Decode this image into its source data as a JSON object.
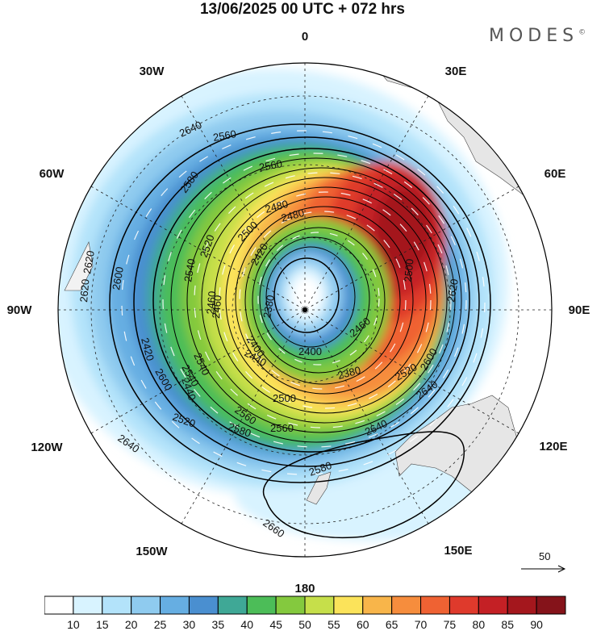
{
  "header": {
    "title": "13/06/2025  00 UTC  + 072 hrs",
    "brand": "MODES",
    "brand_mark": "©"
  },
  "map": {
    "projection": "south-polar-stereographic",
    "longitude_labels": [
      {
        "text": "0",
        "lon": 0
      },
      {
        "text": "30E",
        "lon": 30
      },
      {
        "text": "60E",
        "lon": 60
      },
      {
        "text": "90E",
        "lon": 90
      },
      {
        "text": "120E",
        "lon": 120
      },
      {
        "text": "150E",
        "lon": 150
      },
      {
        "text": "180",
        "lon": 180
      },
      {
        "text": "150W",
        "lon": -150
      },
      {
        "text": "120W",
        "lon": -120
      },
      {
        "text": "90W",
        "lon": -90
      },
      {
        "text": "60W",
        "lon": -60
      },
      {
        "text": "30W",
        "lon": -30
      }
    ],
    "contour_labels": [
      "2640",
      "2620",
      "2600",
      "2580",
      "2560",
      "2540",
      "2520",
      "2500",
      "2480",
      "2460",
      "2440",
      "2420",
      "2400",
      "2380",
      "2660",
      "2580",
      "2560",
      "2540",
      "2520",
      "2500",
      "2460",
      "2440",
      "2420",
      "2400",
      "2380",
      "2620",
      "2600",
      "2580",
      "2560",
      "2540",
      "2520",
      "2500",
      "2480",
      "2460",
      "2640",
      "2640",
      "2640",
      "2620",
      "2600",
      "2560"
    ],
    "wind_reference": "50"
  },
  "colorbar": {
    "levels": [
      "10",
      "15",
      "20",
      "25",
      "30",
      "35",
      "40",
      "45",
      "50",
      "55",
      "60",
      "65",
      "70",
      "75",
      "80",
      "85",
      "90"
    ],
    "colors": [
      "#ffffff",
      "#d8f3ff",
      "#b3e3fa",
      "#8fcbef",
      "#66aee2",
      "#4a8fd0",
      "#3fa896",
      "#4cbd58",
      "#84c93e",
      "#c6df4a",
      "#fbe35a",
      "#f8b54a",
      "#f68d3d",
      "#ef6233",
      "#df3a2c",
      "#c42025",
      "#a4171d",
      "#85131a"
    ]
  }
}
